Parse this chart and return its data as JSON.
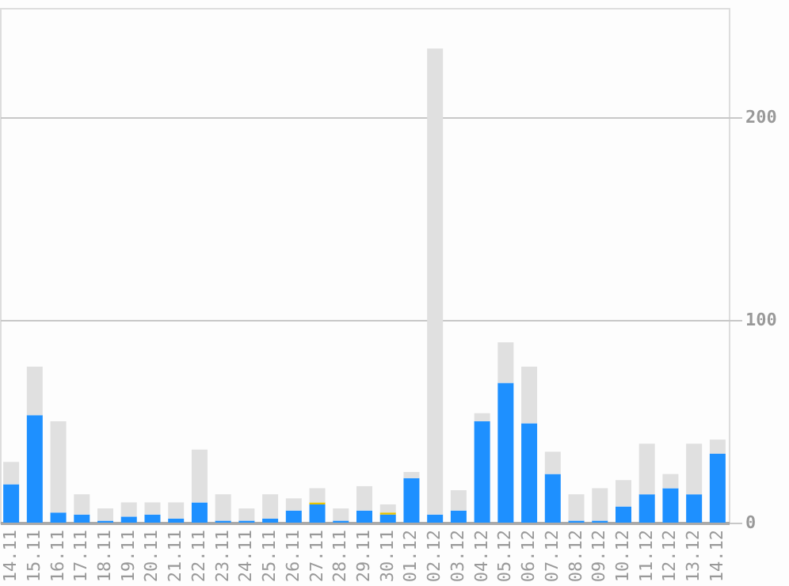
{
  "chart_data": {
    "type": "bar",
    "stacked": true,
    "categories": [
      "14.11",
      "15.11",
      "16.11",
      "17.11",
      "18.11",
      "19.11",
      "20.11",
      "21.11",
      "22.11",
      "23.11",
      "24.11",
      "25.11",
      "26.11",
      "27.11",
      "28.11",
      "29.11",
      "30.11",
      "01.12",
      "02.12",
      "03.12",
      "04.12",
      "05.12",
      "06.12",
      "07.12",
      "08.12",
      "09.12",
      "10.12",
      "11.12",
      "12.12",
      "13.12",
      "14.12"
    ],
    "series": [
      {
        "color": "#1e90ff",
        "values": [
          19,
          53,
          5,
          4,
          1,
          3,
          4,
          2,
          10,
          1,
          1,
          2,
          6,
          9,
          1,
          6,
          4,
          22,
          4,
          6,
          50,
          69,
          49,
          24,
          1,
          1,
          8,
          14,
          17,
          14,
          34
        ]
      },
      {
        "color": "#e6c200",
        "values": [
          0,
          0,
          0,
          0,
          0,
          0,
          0,
          0,
          0,
          0,
          0,
          0,
          0,
          1,
          0,
          0,
          1,
          0,
          0,
          0,
          0,
          0,
          0,
          0,
          0,
          0,
          0,
          0,
          0,
          0,
          0
        ]
      },
      {
        "color": "#e0e0e0",
        "values": [
          11,
          24,
          45,
          10,
          6,
          7,
          6,
          8,
          26,
          13,
          6,
          12,
          6,
          7,
          6,
          12,
          4,
          3,
          230,
          10,
          4,
          20,
          28,
          11,
          13,
          16,
          13,
          25,
          7,
          25,
          7
        ]
      }
    ],
    "ylim": [
      0,
      254
    ],
    "yticks": [
      0,
      100,
      200
    ],
    "grid": "y",
    "legend": false
  }
}
